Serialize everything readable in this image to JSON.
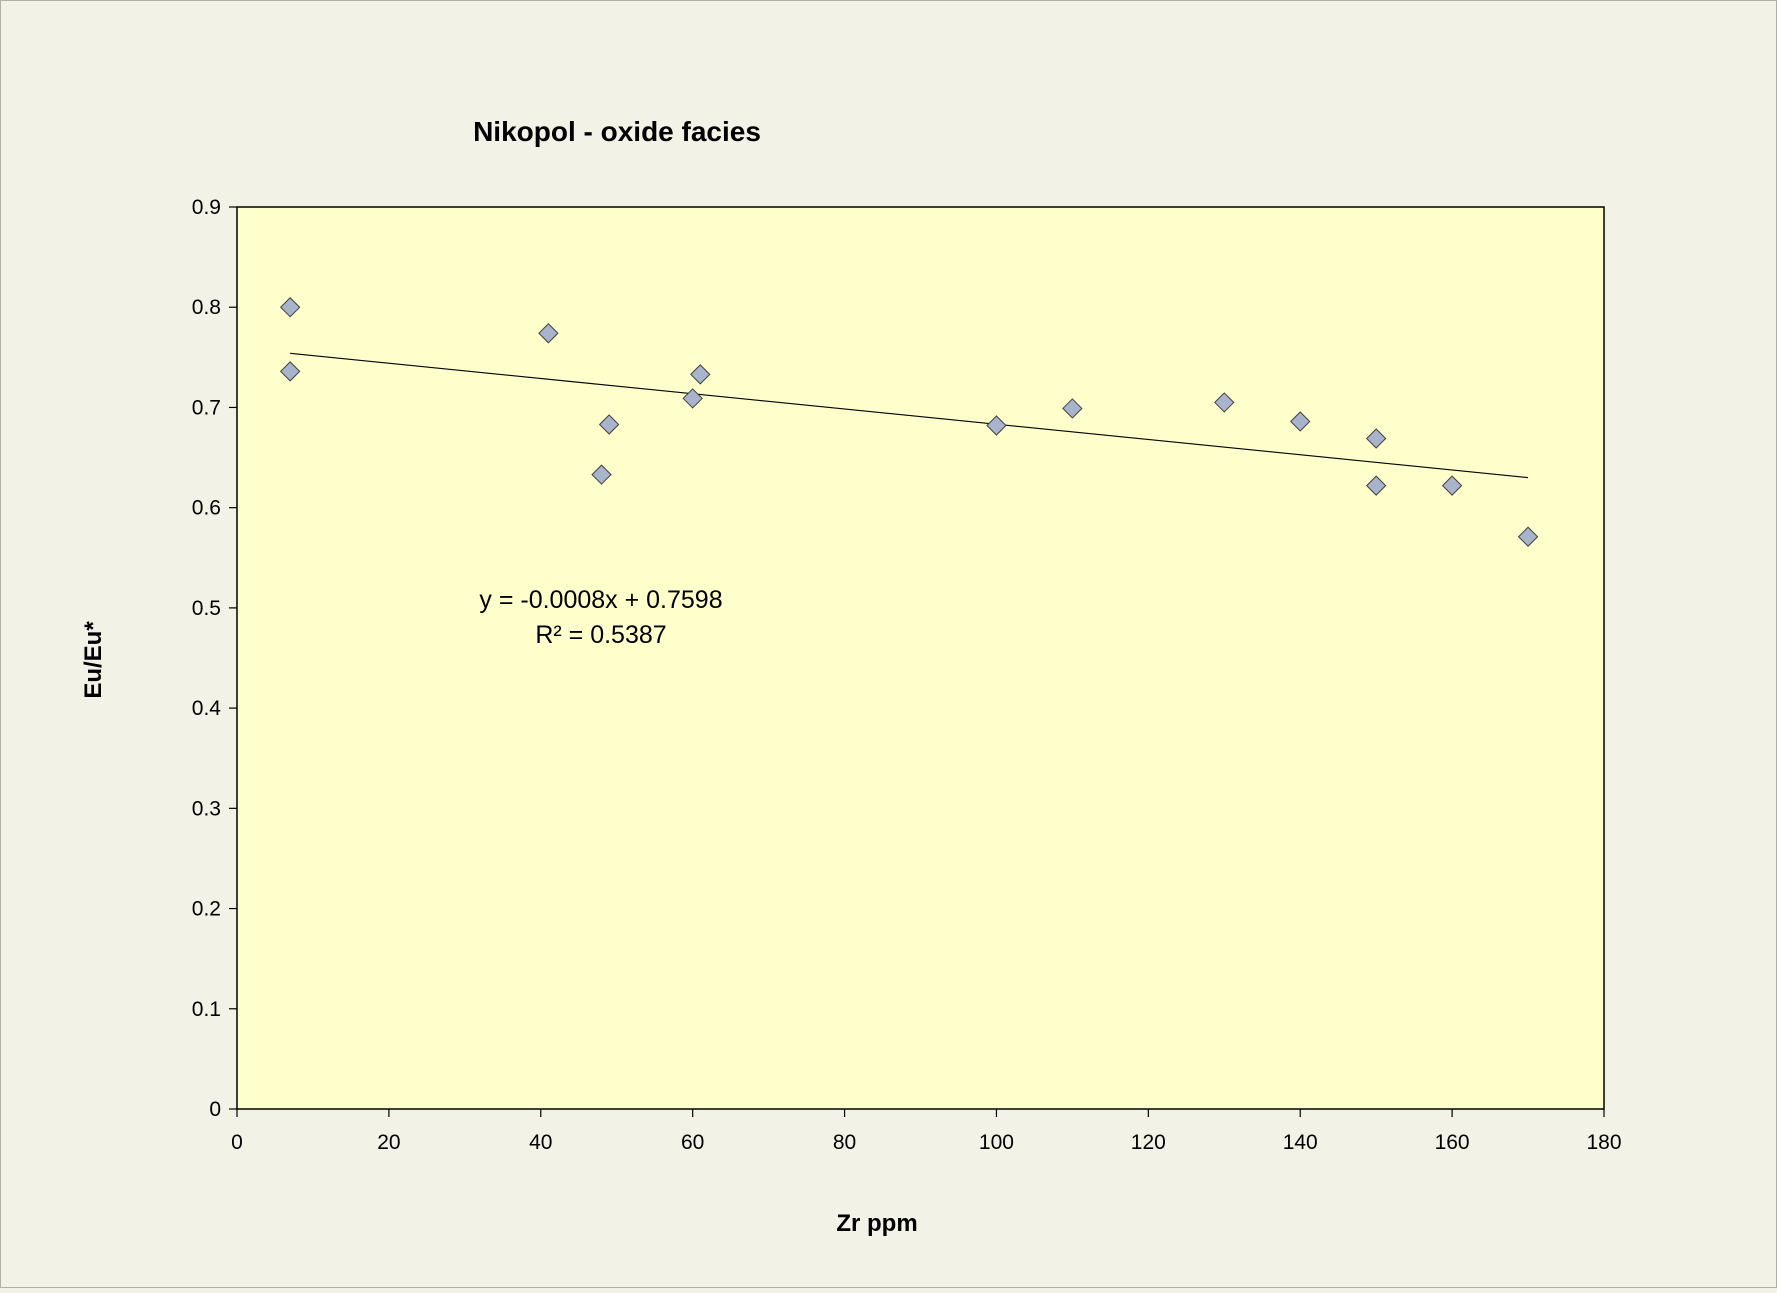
{
  "chart_data": {
    "type": "scatter",
    "title": "Nikopol - oxide facies",
    "xlabel": "Zr ppm",
    "ylabel": "Eu/Eu*",
    "xlim": [
      0,
      180
    ],
    "ylim": [
      0,
      0.9
    ],
    "x_ticks": [
      0,
      20,
      40,
      60,
      80,
      100,
      120,
      140,
      160,
      180
    ],
    "y_ticks": [
      0,
      0.1,
      0.2,
      0.3,
      0.4,
      0.5,
      0.6,
      0.7,
      0.8,
      0.9
    ],
    "x_tick_labels": [
      "0",
      "20",
      "40",
      "60",
      "80",
      "100",
      "120",
      "140",
      "160",
      "180"
    ],
    "y_tick_labels": [
      "0",
      "0.1",
      "0.2",
      "0.3",
      "0.4",
      "0.5",
      "0.6",
      "0.7",
      "0.8",
      "0.9"
    ],
    "grid": false,
    "legend": "none",
    "series": [
      {
        "x": [
          7,
          7,
          41,
          48,
          49,
          60,
          61,
          100,
          110,
          130,
          140,
          150,
          150,
          160,
          170
        ],
        "y": [
          0.8,
          0.736,
          0.774,
          0.633,
          0.683,
          0.709,
          0.733,
          0.682,
          0.699,
          0.705,
          0.686,
          0.669,
          0.622,
          0.622,
          0.571
        ],
        "marker": "diamond",
        "color": "#a8b4cc"
      }
    ],
    "trendline": {
      "type": "linear",
      "x_range": [
        7,
        170
      ],
      "y_range": [
        0.754,
        0.63
      ],
      "equation": "y = -0.0008x + 0.7598",
      "r_squared": "R² = 0.5387"
    },
    "colors": {
      "page_background": "#f2f2e6",
      "plot_background": "#ffffcc",
      "marker_fill": "#a8b4cc",
      "marker_stroke": "#404040"
    }
  }
}
